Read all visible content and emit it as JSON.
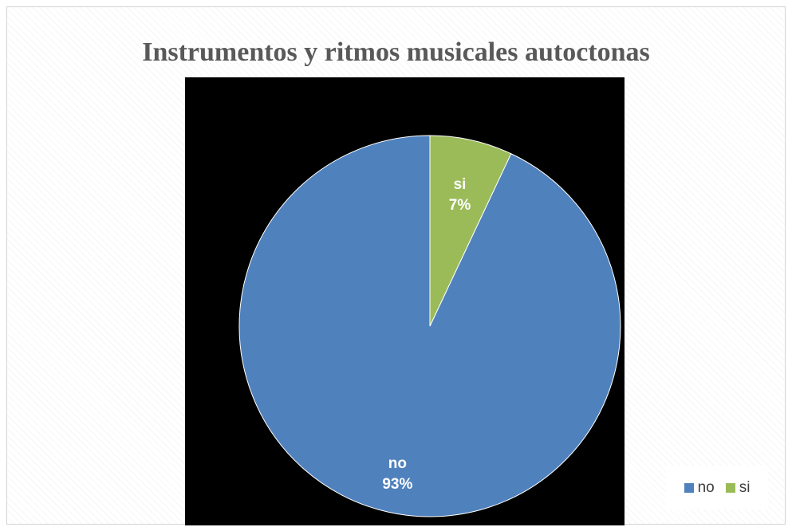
{
  "chart_data": {
    "type": "pie",
    "title": "Instrumentos y ritmos musicales autoctonas",
    "slices": [
      {
        "label": "no",
        "value": 93,
        "percent_label": "93%",
        "color": "#4f81bd"
      },
      {
        "label": "si",
        "value": 7,
        "percent_label": "7%",
        "color": "#9bbb59"
      }
    ],
    "start_angle_deg": 0,
    "direction": "counterclockwise",
    "plot_background": "#000000",
    "legend": {
      "position": "bottom-right",
      "entries": [
        "no",
        "si"
      ]
    },
    "data_labels": {
      "show_category": true,
      "show_percent": true,
      "color": "#ffffff"
    }
  }
}
